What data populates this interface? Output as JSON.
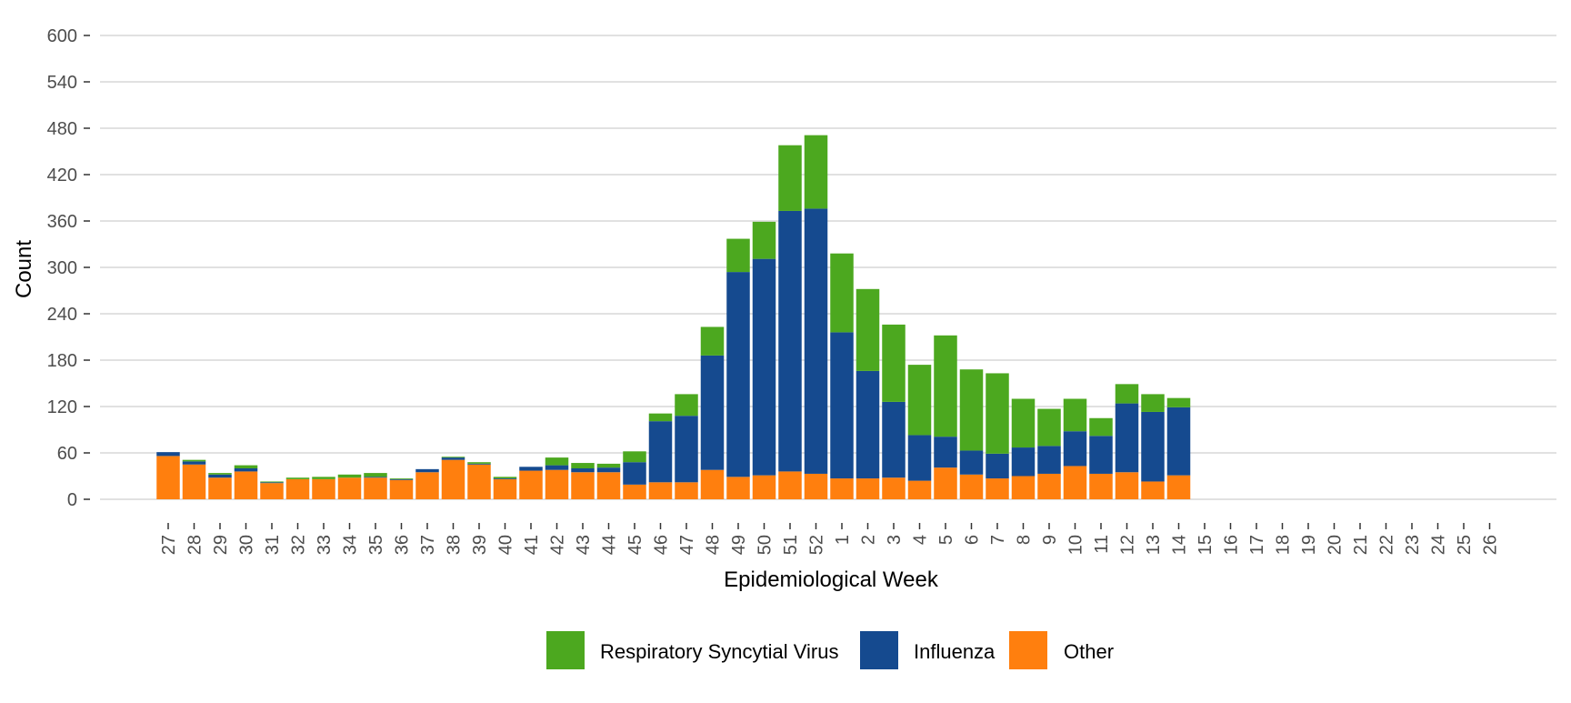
{
  "chart_data": {
    "type": "bar",
    "stacked": true,
    "title": "",
    "xlabel": "Epidemiological Week",
    "ylabel": "Count",
    "ylim": [
      0,
      600
    ],
    "yticks": [
      0,
      60,
      120,
      180,
      240,
      300,
      360,
      420,
      480,
      540,
      600
    ],
    "grid": true,
    "legend_position": "bottom",
    "categories": [
      "27",
      "28",
      "29",
      "30",
      "31",
      "32",
      "33",
      "34",
      "35",
      "36",
      "37",
      "38",
      "39",
      "40",
      "41",
      "42",
      "43",
      "44",
      "45",
      "46",
      "47",
      "48",
      "49",
      "50",
      "51",
      "52",
      "1",
      "2",
      "3",
      "4",
      "5",
      "6",
      "7",
      "8",
      "9",
      "10",
      "11",
      "12",
      "13",
      "14",
      "15",
      "16",
      "17",
      "18",
      "19",
      "20",
      "21",
      "22",
      "23",
      "24",
      "25",
      "26"
    ],
    "series": [
      {
        "name": "Other",
        "color": "#FF7F0E",
        "values": [
          56,
          45,
          28,
          36,
          21,
          26,
          26,
          28,
          28,
          25,
          35,
          51,
          45,
          26,
          37,
          38,
          35,
          35,
          19,
          22,
          22,
          38,
          29,
          31,
          36,
          33,
          27,
          27,
          28,
          24,
          41,
          32,
          27,
          30,
          33,
          43,
          33,
          35,
          23,
          31,
          0,
          0,
          0,
          0,
          0,
          0,
          0,
          0,
          0,
          0,
          0,
          0
        ]
      },
      {
        "name": "Influenza",
        "color": "#154A8F",
        "values": [
          5,
          4,
          4,
          4,
          1,
          0,
          0,
          0,
          1,
          1,
          4,
          3,
          1,
          1,
          5,
          6,
          5,
          6,
          29,
          79,
          86,
          148,
          265,
          280,
          337,
          343,
          189,
          139,
          98,
          59,
          40,
          31,
          32,
          37,
          36,
          45,
          49,
          89,
          90,
          88,
          0,
          0,
          0,
          0,
          0,
          0,
          0,
          0,
          0,
          0,
          0,
          0
        ]
      },
      {
        "name": "Respiratory Syncytial Virus",
        "color": "#4CA81F",
        "values": [
          0,
          2,
          2,
          4,
          1,
          2,
          3,
          4,
          5,
          1,
          0,
          1,
          2,
          2,
          0,
          10,
          7,
          5,
          14,
          10,
          28,
          37,
          43,
          48,
          85,
          95,
          102,
          106,
          100,
          91,
          131,
          105,
          104,
          63,
          48,
          42,
          23,
          25,
          23,
          12,
          0,
          0,
          0,
          0,
          0,
          0,
          0,
          0,
          0,
          0,
          0,
          0
        ]
      }
    ],
    "legend": [
      {
        "name": "Respiratory Syncytial Virus",
        "color": "#4CA81F"
      },
      {
        "name": "Influenza",
        "color": "#154A8F"
      },
      {
        "name": "Other",
        "color": "#FF7F0E"
      }
    ]
  }
}
